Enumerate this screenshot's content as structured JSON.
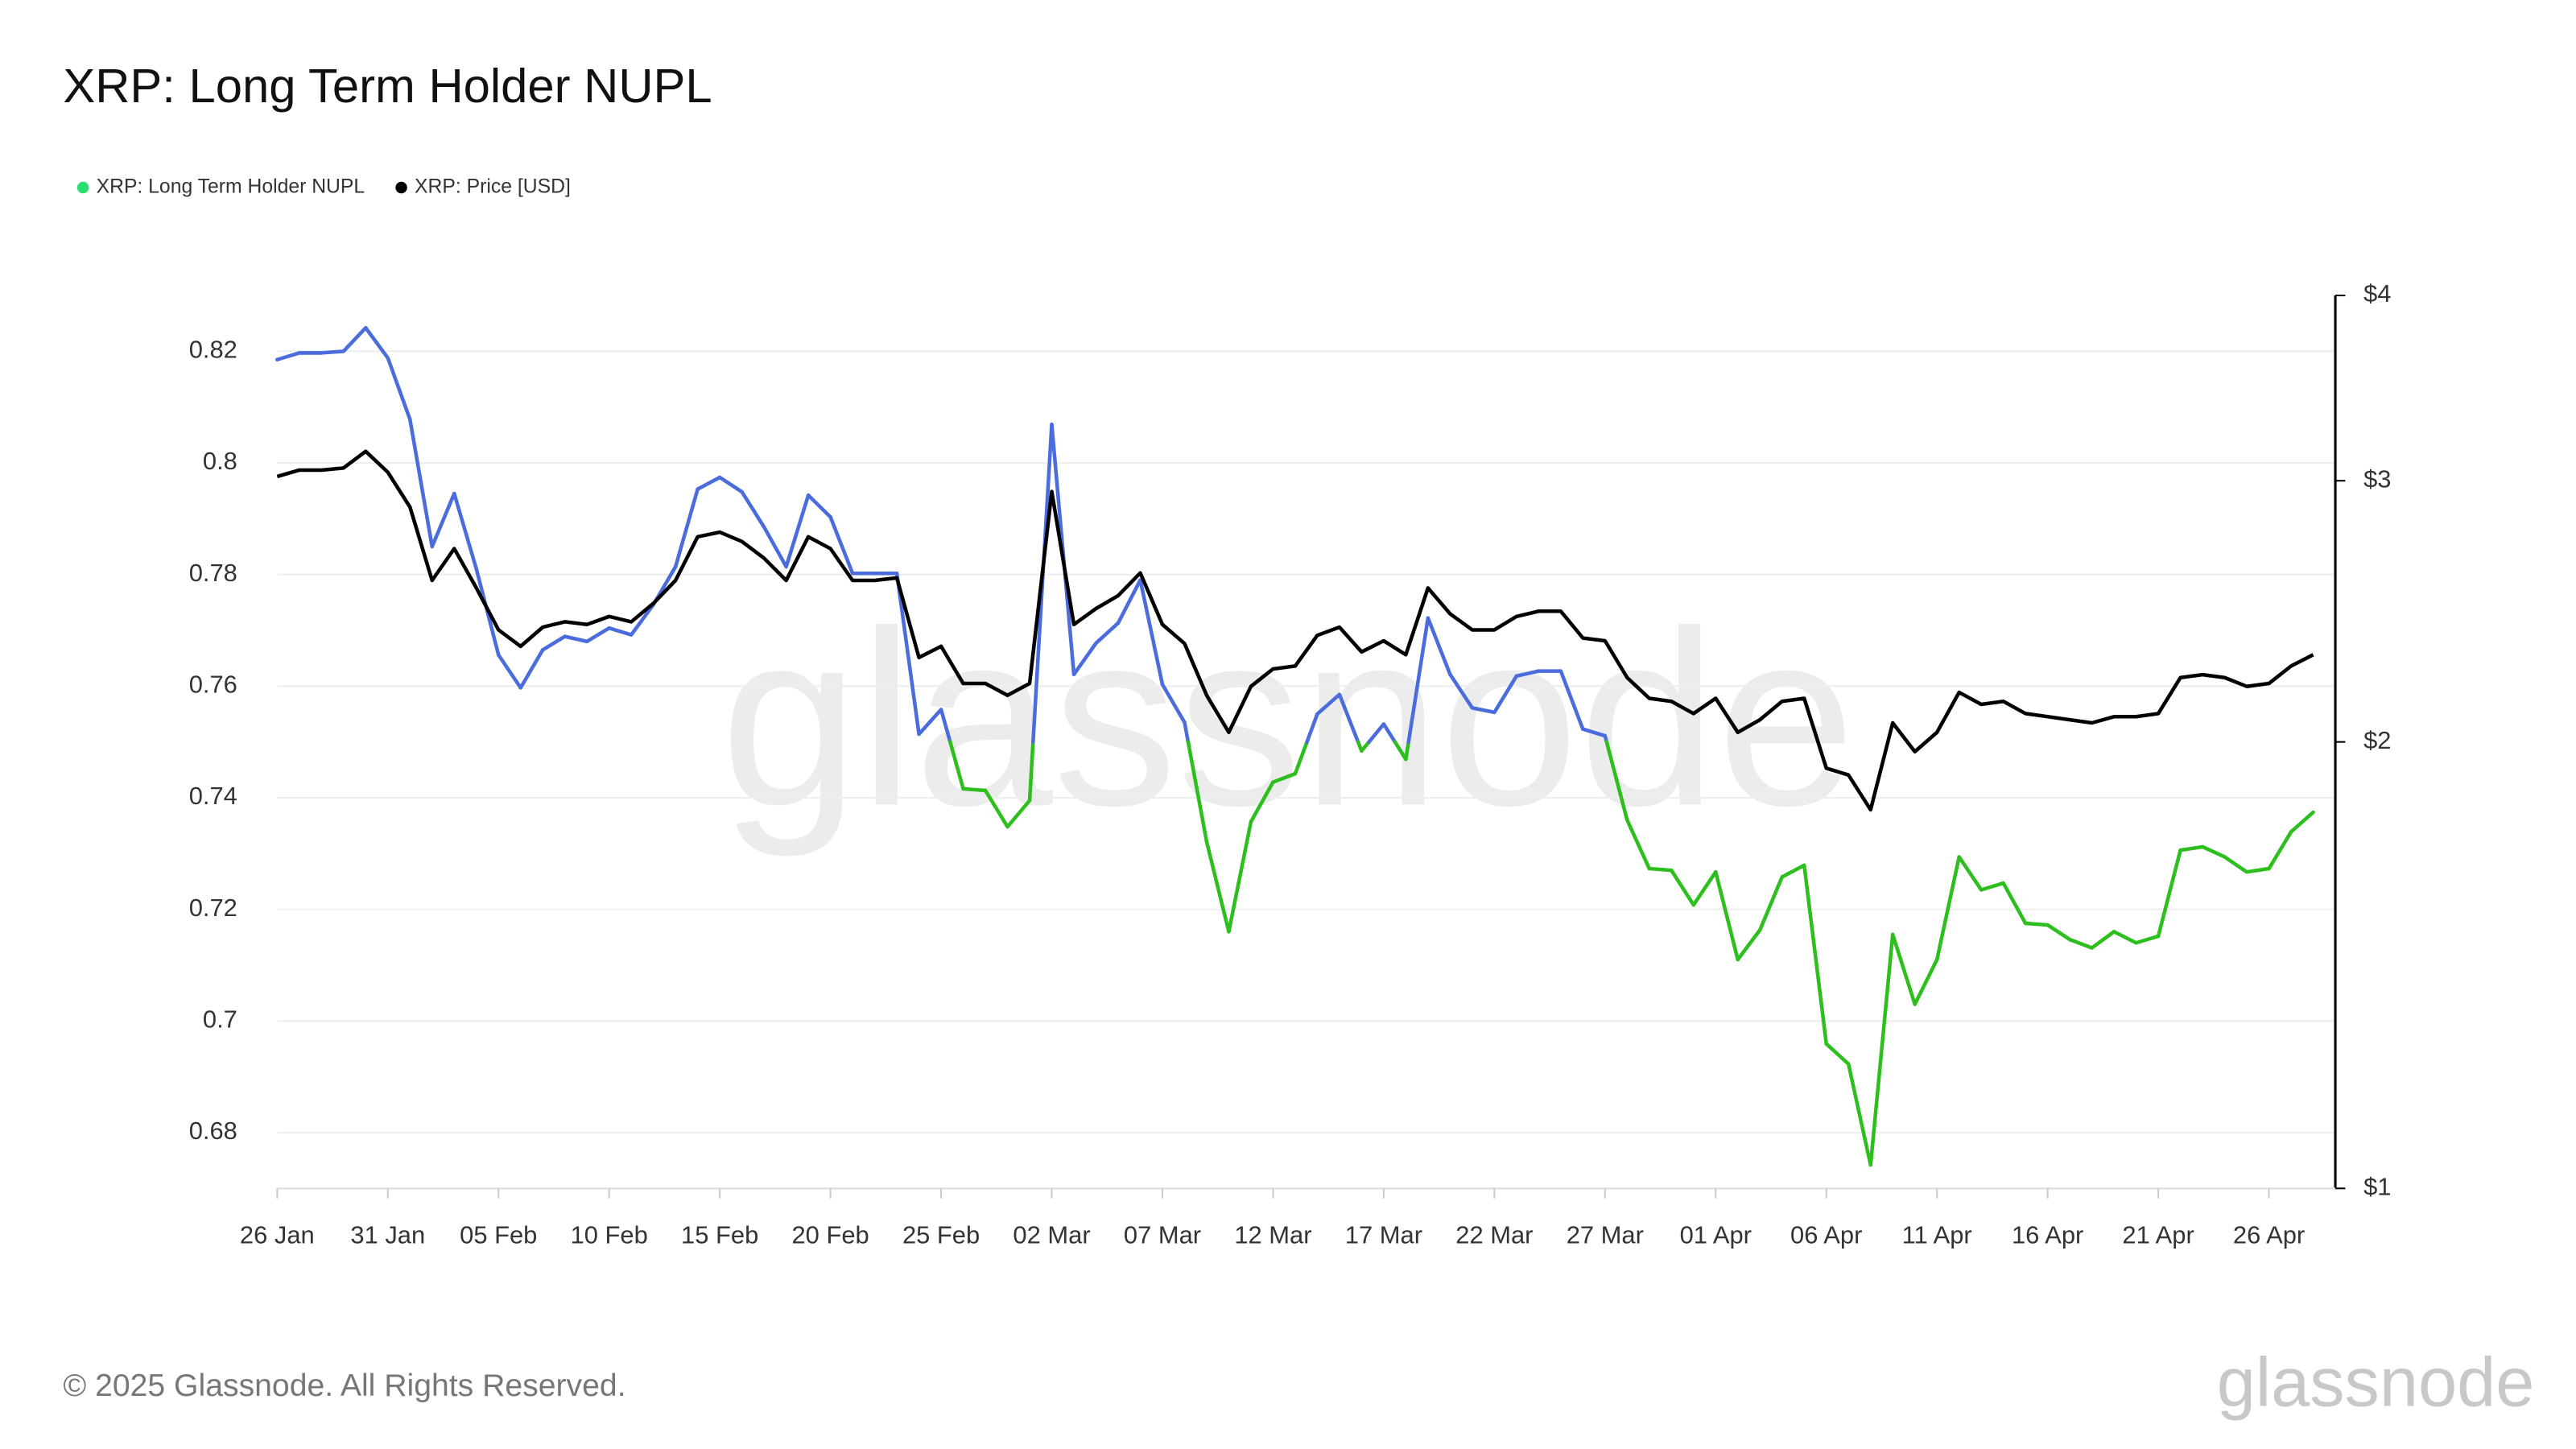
{
  "chart_data": {
    "type": "line",
    "title": "XRP: Long Term Holder NUPL",
    "categories": [
      "26 Jan",
      null,
      null,
      null,
      null,
      "31 Jan",
      null,
      null,
      null,
      null,
      "05 Feb",
      null,
      null,
      null,
      null,
      "10 Feb",
      null,
      null,
      null,
      null,
      "15 Feb",
      null,
      null,
      null,
      null,
      "20 Feb",
      null,
      null,
      null,
      null,
      "25 Feb",
      null,
      null,
      null,
      null,
      "02 Mar",
      null,
      null,
      null,
      null,
      "07 Mar",
      null,
      null,
      null,
      null,
      "12 Mar",
      null,
      null,
      null,
      null,
      "17 Mar",
      null,
      null,
      null,
      null,
      "22 Mar",
      null,
      null,
      null,
      null,
      "27 Mar",
      null,
      null,
      null,
      null,
      "01 Apr",
      null,
      null,
      null,
      null,
      "06 Apr",
      null,
      null,
      null,
      null,
      "11 Apr",
      null,
      null,
      null,
      null,
      "16 Apr",
      null,
      null,
      null,
      null,
      "21 Apr",
      null,
      null,
      null,
      null,
      "26 Apr",
      null,
      null
    ],
    "series": [
      {
        "name": "XRP: Long Term Holder NUPL",
        "color": "#27e06f",
        "zones": [
          {
            "below": 0.75,
            "color": "#2dbf1d"
          },
          {
            "color": "#4a6cdc"
          }
        ],
        "values": [
          0.8185,
          0.8197,
          0.8197,
          0.82,
          0.8242,
          0.8188,
          0.8078,
          0.785,
          0.7945,
          0.781,
          0.7656,
          0.7597,
          0.7665,
          0.7689,
          0.768,
          0.7704,
          0.7692,
          0.7746,
          0.7814,
          0.7953,
          0.7974,
          0.7948,
          0.7885,
          0.7814,
          0.7942,
          0.7903,
          0.7802,
          0.7802,
          0.7802,
          0.7514,
          0.7558,
          0.7416,
          0.7413,
          0.7348,
          0.7395,
          0.8069,
          0.7621,
          0.7677,
          0.7713,
          0.779,
          0.7603,
          0.7535,
          0.7321,
          0.716,
          0.7357,
          0.7428,
          0.7443,
          0.755,
          0.7585,
          0.7484,
          0.7532,
          0.7469,
          0.7722,
          0.7621,
          0.7561,
          0.7553,
          0.7618,
          0.7627,
          0.7627,
          0.7523,
          0.7511,
          0.736,
          0.7273,
          0.727,
          0.7208,
          0.7267,
          0.711,
          0.7163,
          0.7258,
          0.7279,
          0.6959,
          0.6923,
          0.6742,
          0.7155,
          0.703,
          0.711,
          0.7294,
          0.7235,
          0.7247,
          0.7175,
          0.7172,
          0.7146,
          0.7131,
          0.716,
          0.714,
          0.7152,
          0.7306,
          0.7312,
          0.7294,
          0.7267,
          0.7273,
          0.7339,
          0.7374
        ]
      },
      {
        "name": "XRP: Price [USD]",
        "color": "#000000",
        "axis": "y2",
        "values": [
          3.02,
          3.05,
          3.05,
          3.06,
          3.14,
          3.04,
          2.88,
          2.57,
          2.7,
          2.54,
          2.38,
          2.32,
          2.39,
          2.41,
          2.4,
          2.43,
          2.41,
          2.48,
          2.57,
          2.75,
          2.77,
          2.73,
          2.66,
          2.57,
          2.75,
          2.7,
          2.57,
          2.57,
          2.58,
          2.28,
          2.32,
          2.19,
          2.19,
          2.15,
          2.19,
          2.95,
          2.4,
          2.46,
          2.51,
          2.6,
          2.4,
          2.33,
          2.15,
          2.03,
          2.18,
          2.24,
          2.25,
          2.36,
          2.39,
          2.3,
          2.34,
          2.29,
          2.54,
          2.44,
          2.38,
          2.38,
          2.43,
          2.45,
          2.45,
          2.35,
          2.34,
          2.21,
          2.14,
          2.13,
          2.09,
          2.14,
          2.03,
          2.07,
          2.13,
          2.14,
          1.92,
          1.9,
          1.8,
          2.06,
          1.97,
          2.03,
          2.16,
          2.12,
          2.13,
          2.09,
          2.08,
          2.07,
          2.06,
          2.08,
          2.08,
          2.09,
          2.21,
          2.22,
          2.21,
          2.18,
          2.19,
          2.25,
          2.29
        ]
      }
    ],
    "ylim": [
      0.67,
      0.83
    ],
    "yticks": [
      0.68,
      0.7,
      0.72,
      0.74,
      0.76,
      0.78,
      0.8,
      0.82
    ],
    "y2lim": [
      1,
      4
    ],
    "y2log": true,
    "y2ticks": [
      {
        "value": 1,
        "label": "$1"
      },
      {
        "value": 2,
        "label": "$2"
      },
      {
        "value": 3,
        "label": "$3"
      },
      {
        "value": 4,
        "label": "$4"
      }
    ],
    "grid": true,
    "legend": "top-left",
    "watermark": "glassnode",
    "footer": "© 2025 Glassnode. All Rights Reserved.",
    "logo": "glassnode"
  }
}
